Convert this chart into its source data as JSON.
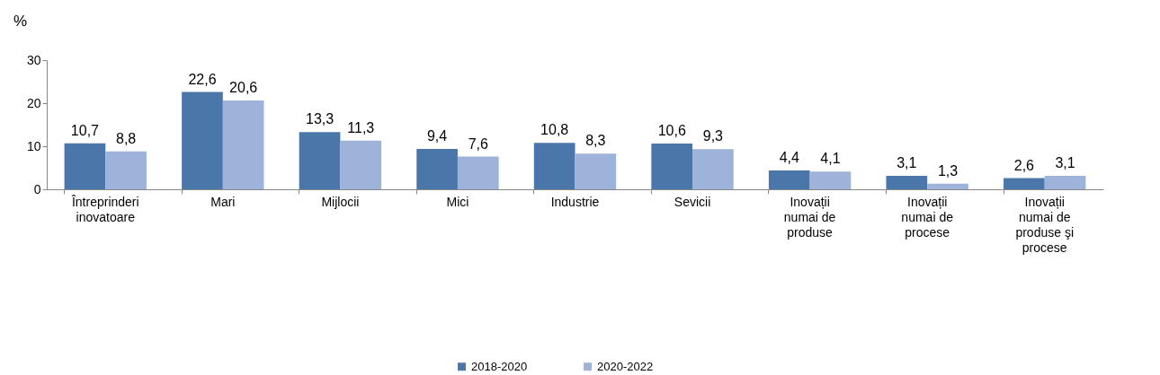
{
  "chart_data": {
    "type": "bar",
    "ylabel": "%",
    "categories": [
      "Întreprinderi inovatoare",
      "Mari",
      "Mijlocii",
      "Mici",
      "Industrie",
      "Sevicii",
      "Inovații numai de produse",
      "Inovații numai de procese",
      "Inovații numai de produse şi procese"
    ],
    "series": [
      {
        "name": "2018-2020",
        "color": "#4a76aa",
        "values": [
          10.7,
          22.6,
          13.3,
          9.4,
          10.8,
          10.6,
          4.4,
          3.1,
          2.6
        ],
        "value_labels": [
          "10,7",
          "22,6",
          "13,3",
          "9,4",
          "10,8",
          "10,6",
          "4,4",
          "3,1",
          "2,6"
        ]
      },
      {
        "name": "2020-2022",
        "color": "#9db3da",
        "values": [
          8.8,
          20.6,
          11.3,
          7.6,
          8.3,
          9.3,
          4.1,
          1.3,
          3.1
        ],
        "value_labels": [
          "8,8",
          "20,6",
          "11,3",
          "7,6",
          "8,3",
          "9,3",
          "4,1",
          "1,3",
          "3,1"
        ]
      }
    ],
    "ylim": [
      0,
      30
    ],
    "yticks": [
      0,
      10,
      20,
      30
    ],
    "grid": false,
    "legend": "bottom"
  }
}
